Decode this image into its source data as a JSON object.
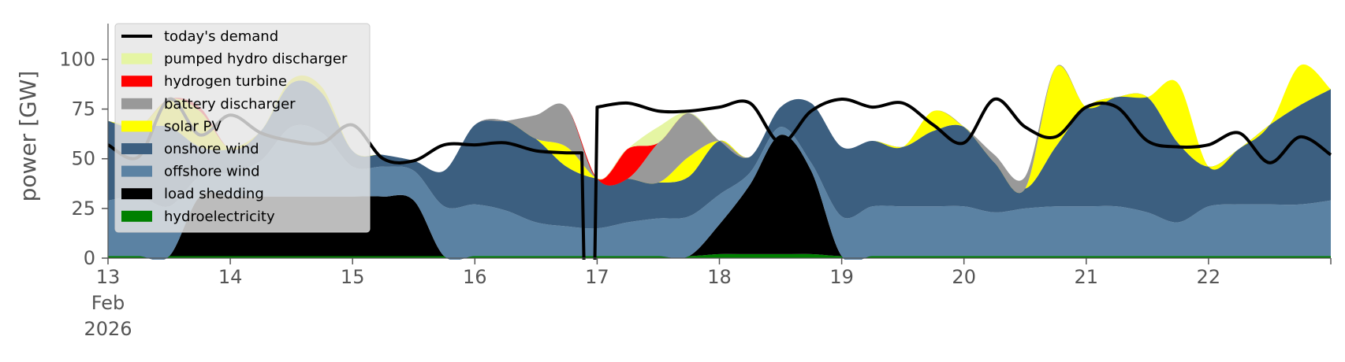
{
  "chart_data": {
    "type": "area",
    "stacked": true,
    "ylabel": "power [GW]",
    "ylim": [
      0,
      118
    ],
    "yticks": [
      0,
      25,
      50,
      75,
      100
    ],
    "xlim": [
      "2026-02-13T00:00",
      "2026-02-23T00:00"
    ],
    "xticks": [
      {
        "at": "2026-02-13T00:00",
        "lines": [
          "13",
          "Feb",
          "2026"
        ]
      },
      {
        "at": "2026-02-14T00:00",
        "lines": [
          "14"
        ]
      },
      {
        "at": "2026-02-15T00:00",
        "lines": [
          "15"
        ]
      },
      {
        "at": "2026-02-16T00:00",
        "lines": [
          "16"
        ]
      },
      {
        "at": "2026-02-17T00:00",
        "lines": [
          "17"
        ]
      },
      {
        "at": "2026-02-18T00:00",
        "lines": [
          "18"
        ]
      },
      {
        "at": "2026-02-19T00:00",
        "lines": [
          "19"
        ]
      },
      {
        "at": "2026-02-20T00:00",
        "lines": [
          "20"
        ]
      },
      {
        "at": "2026-02-21T00:00",
        "lines": [
          "21"
        ]
      },
      {
        "at": "2026-02-22T00:00",
        "lines": [
          "22"
        ]
      }
    ],
    "grid": false,
    "legend_position": "top-left",
    "x": [
      "2026-02-13T00:00",
      "2026-02-13T06:00",
      "2026-02-13T12:00",
      "2026-02-13T18:00",
      "2026-02-14T00:00",
      "2026-02-14T06:00",
      "2026-02-14T12:00",
      "2026-02-14T18:00",
      "2026-02-15T00:00",
      "2026-02-15T06:00",
      "2026-02-15T12:00",
      "2026-02-15T18:00",
      "2026-02-16T00:00",
      "2026-02-16T06:00",
      "2026-02-16T12:00",
      "2026-02-16T18:00",
      "2026-02-17T00:00",
      "2026-02-17T06:00",
      "2026-02-17T12:00",
      "2026-02-17T18:00",
      "2026-02-18T00:00",
      "2026-02-18T06:00",
      "2026-02-18T12:00",
      "2026-02-18T18:00",
      "2026-02-19T00:00",
      "2026-02-19T06:00",
      "2026-02-19T12:00",
      "2026-02-19T18:00",
      "2026-02-20T00:00",
      "2026-02-20T06:00",
      "2026-02-20T12:00",
      "2026-02-20T18:00",
      "2026-02-21T00:00",
      "2026-02-21T06:00",
      "2026-02-21T12:00",
      "2026-02-21T18:00",
      "2026-02-22T00:00",
      "2026-02-22T06:00",
      "2026-02-22T12:00",
      "2026-02-22T18:00",
      "2026-02-23T00:00"
    ],
    "series": [
      {
        "name": "hydroelectricity",
        "color": "#008000",
        "values": [
          1,
          1,
          1,
          1,
          1,
          1,
          1,
          1,
          1,
          1,
          1,
          1,
          1,
          1,
          1,
          1,
          1,
          1,
          1,
          1,
          2,
          2,
          2,
          2,
          1,
          1,
          1,
          1,
          1,
          1,
          1,
          1,
          1,
          1,
          1,
          1,
          1,
          1,
          1,
          1,
          1
        ]
      },
      {
        "name": "load shedding",
        "color": "#000000",
        "values": [
          0,
          0,
          0,
          30,
          30,
          30,
          30,
          30,
          30,
          30,
          28,
          0,
          0,
          0,
          0,
          0,
          0,
          0,
          0,
          0,
          15,
          35,
          60,
          42,
          0,
          0,
          0,
          0,
          0,
          0,
          0,
          0,
          0,
          0,
          0,
          0,
          0,
          0,
          0,
          0,
          0
        ]
      },
      {
        "name": "offshore wind",
        "color": "#5b82a3",
        "values": [
          28,
          30,
          25,
          10,
          12,
          18,
          35,
          32,
          15,
          15,
          15,
          25,
          26,
          23,
          17,
          15,
          14,
          17,
          19,
          20,
          15,
          6,
          4,
          4,
          20,
          25,
          25,
          25,
          25,
          22,
          24,
          25,
          25,
          25,
          22,
          17,
          25,
          26,
          26,
          26,
          28
        ]
      },
      {
        "name": "onshore wind",
        "color": "#3c5f80",
        "values": [
          40,
          35,
          40,
          15,
          12,
          15,
          22,
          20,
          8,
          6,
          5,
          18,
          40,
          45,
          42,
          30,
          25,
          22,
          18,
          20,
          27,
          8,
          10,
          30,
          35,
          33,
          30,
          38,
          40,
          25,
          10,
          30,
          50,
          55,
          58,
          40,
          20,
          28,
          40,
          50,
          56
        ]
      },
      {
        "name": "solar PV",
        "color": "#ffff00",
        "values": [
          0,
          0,
          14,
          18,
          0,
          0,
          2,
          3,
          0,
          0,
          0,
          0,
          0,
          0,
          0,
          10,
          0,
          0,
          0,
          10,
          0,
          0,
          0,
          0,
          0,
          0,
          0,
          10,
          0,
          0,
          0,
          40,
          0,
          0,
          0,
          30,
          0,
          0,
          0,
          20,
          0
        ]
      },
      {
        "name": "battery discharger",
        "color": "#999999",
        "values": [
          0,
          0,
          0,
          0,
          0,
          0,
          0,
          0,
          0,
          0,
          0,
          0,
          0,
          0,
          12,
          20,
          0,
          0,
          20,
          22,
          0,
          0,
          0,
          0,
          0,
          0,
          0,
          0,
          0,
          4,
          6,
          0,
          0,
          0,
          0,
          0,
          0,
          0,
          0,
          0,
          0
        ]
      },
      {
        "name": "hydrogen turbine",
        "color": "#ff0000",
        "values": [
          0,
          0,
          0,
          2,
          0,
          0,
          0,
          0,
          0,
          0,
          0,
          0,
          0,
          0,
          0,
          0,
          0,
          15,
          0,
          0,
          0,
          0,
          0,
          0,
          0,
          0,
          0,
          0,
          0,
          0,
          0,
          0,
          0,
          0,
          0,
          0,
          0,
          0,
          0,
          0,
          0
        ]
      },
      {
        "name": "pumped hydro discharger",
        "color": "#e5f5a3",
        "values": [
          0,
          0,
          0,
          0,
          0,
          0,
          0,
          0,
          0,
          0,
          0,
          0,
          0,
          0,
          0,
          0,
          0,
          0,
          8,
          0,
          0,
          0,
          0,
          0,
          0,
          0,
          0,
          0,
          0,
          0,
          0,
          0,
          0,
          0,
          0,
          0,
          0,
          0,
          0,
          0,
          0
        ]
      }
    ],
    "demand": {
      "name": "today's demand",
      "color": "#000000",
      "values": [
        57,
        51,
        80,
        62,
        72,
        63,
        59,
        58,
        67,
        50,
        49,
        57,
        57,
        58,
        54,
        53,
        76,
        78,
        74,
        74,
        76,
        78,
        58,
        74,
        80,
        76,
        78,
        67,
        58,
        80,
        66,
        61,
        76,
        76,
        59,
        56,
        57,
        63,
        48,
        61,
        52
      ]
    },
    "demand_dip": {
      "from": "2026-02-16T21:00",
      "to": "2026-02-17T00:00",
      "min": -30
    },
    "legend": [
      {
        "label": "today's demand",
        "color": "#000000",
        "kind": "line"
      },
      {
        "label": "pumped hydro discharger",
        "color": "#e5f5a3",
        "kind": "patch"
      },
      {
        "label": "hydrogen turbine",
        "color": "#ff0000",
        "kind": "patch"
      },
      {
        "label": "battery discharger",
        "color": "#999999",
        "kind": "patch"
      },
      {
        "label": "solar PV",
        "color": "#ffff00",
        "kind": "patch"
      },
      {
        "label": "onshore wind",
        "color": "#3c5f80",
        "kind": "patch"
      },
      {
        "label": "offshore wind",
        "color": "#5b82a3",
        "kind": "patch"
      },
      {
        "label": "load shedding",
        "color": "#000000",
        "kind": "patch"
      },
      {
        "label": "hydroelectricity",
        "color": "#008000",
        "kind": "patch"
      }
    ]
  }
}
